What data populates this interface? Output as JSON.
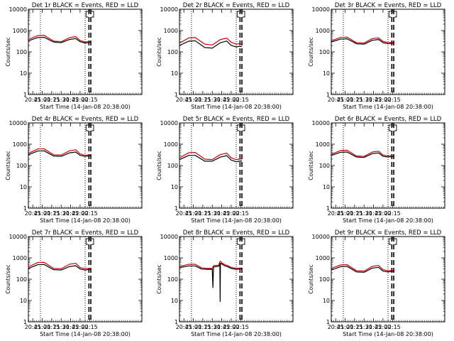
{
  "chart_data": [
    {
      "type": "line",
      "title": "Det 1r BLACK = Events, RED = LLD",
      "xlabel": "Start Time (14-Jan-08 20:38:00)",
      "ylabel": "Counts/sec",
      "yscale": "log",
      "ylim": [
        1,
        10000
      ],
      "xlim": [
        38,
        218
      ],
      "xticks": [
        45,
        60,
        75,
        90,
        105,
        120,
        135
      ],
      "xticklabels": [
        "20:45",
        "21:00",
        "21:15",
        "21:30",
        "21:45",
        "22:00",
        "22:15"
      ],
      "yticklabels": [
        "1",
        "10",
        "100",
        "1000",
        "10000"
      ],
      "series": [
        {
          "name": "Events",
          "color": "#000000",
          "x": [
            38,
            53,
            63,
            78,
            90,
            103,
            113,
            120,
            128,
            133,
            137
          ],
          "y": [
            330,
            470,
            480,
            290,
            270,
            380,
            420,
            300,
            260,
            270,
            285
          ]
        },
        {
          "name": "LLD",
          "color": "#cc0000",
          "x": [
            38,
            53,
            63,
            78,
            90,
            103,
            113,
            120,
            128,
            133,
            137
          ],
          "y": [
            380,
            580,
            600,
            320,
            300,
            460,
            520,
            340,
            290,
            300,
            310
          ]
        }
      ],
      "vlines_dotted": [
        57,
        128
      ],
      "vlines_dashed": [
        134,
        137
      ]
    },
    {
      "type": "line",
      "title": "Det 2r BLACK = Events, RED = LLD",
      "xlabel": "Start Time (14-Jan-08 20:38:00)",
      "ylabel": "Counts/sec",
      "yscale": "log",
      "ylim": [
        1,
        10000
      ],
      "xlim": [
        38,
        218
      ],
      "xticks": [
        45,
        60,
        75,
        90,
        105,
        120,
        135
      ],
      "xticklabels": [
        "20:45",
        "21:00",
        "21:15",
        "21:30",
        "21:45",
        "22:00",
        "22:15"
      ],
      "yticklabels": [
        "1",
        "10",
        "100",
        "1000",
        "10000"
      ],
      "series": [
        {
          "name": "Events",
          "color": "#000000",
          "x": [
            38,
            53,
            63,
            78,
            90,
            103,
            113,
            120,
            128,
            133,
            137
          ],
          "y": [
            200,
            320,
            330,
            160,
            150,
            270,
            320,
            200,
            170,
            180,
            175
          ]
        },
        {
          "name": "LLD",
          "color": "#cc0000",
          "x": [
            38,
            53,
            63,
            78,
            90,
            103,
            113,
            120,
            128,
            133,
            137
          ],
          "y": [
            260,
            450,
            470,
            230,
            210,
            380,
            440,
            280,
            230,
            240,
            235
          ]
        }
      ],
      "vlines_dotted": [
        57,
        128
      ],
      "vlines_dashed": [
        134,
        137
      ]
    },
    {
      "type": "line",
      "title": "Det 3r BLACK = Events, RED = LLD",
      "xlabel": "Start Time (14-Jan-08 20:38:00)",
      "ylabel": "Counts/sec",
      "yscale": "log",
      "ylim": [
        1,
        10000
      ],
      "xlim": [
        38,
        218
      ],
      "xticks": [
        45,
        60,
        75,
        90,
        105,
        120,
        135
      ],
      "xticklabels": [
        "20:45",
        "21:00",
        "21:15",
        "21:30",
        "21:45",
        "22:00",
        "22:15"
      ],
      "yticklabels": [
        "1",
        "10",
        "100",
        "1000",
        "10000"
      ],
      "series": [
        {
          "name": "Events",
          "color": "#000000",
          "x": [
            38,
            53,
            63,
            78,
            90,
            103,
            113,
            120,
            128,
            133,
            137
          ],
          "y": [
            290,
            400,
            410,
            240,
            230,
            350,
            380,
            270,
            240,
            250,
            255
          ]
        },
        {
          "name": "LLD",
          "color": "#cc0000",
          "x": [
            38,
            53,
            63,
            78,
            90,
            103,
            113,
            120,
            128,
            133,
            137
          ],
          "y": [
            330,
            480,
            490,
            270,
            260,
            420,
            450,
            310,
            270,
            280,
            285
          ]
        }
      ],
      "vlines_dotted": [
        57,
        128
      ],
      "vlines_dashed": [
        134,
        137
      ]
    },
    {
      "type": "line",
      "title": "Det 4r BLACK = Events, RED = LLD",
      "xlabel": "Start Time (14-Jan-08 20:38:00)",
      "ylabel": "Counts/sec",
      "yscale": "log",
      "ylim": [
        1,
        10000
      ],
      "xlim": [
        38,
        218
      ],
      "xticks": [
        45,
        60,
        75,
        90,
        105,
        120,
        135
      ],
      "xticklabels": [
        "20:45",
        "21:00",
        "21:15",
        "21:30",
        "21:45",
        "22:00",
        "22:15"
      ],
      "yticklabels": [
        "1",
        "10",
        "100",
        "1000",
        "10000"
      ],
      "series": [
        {
          "name": "Events",
          "color": "#000000",
          "x": [
            38,
            53,
            63,
            78,
            90,
            103,
            113,
            120,
            128,
            133,
            137
          ],
          "y": [
            320,
            480,
            490,
            280,
            270,
            390,
            430,
            300,
            270,
            280,
            290
          ]
        },
        {
          "name": "LLD",
          "color": "#cc0000",
          "x": [
            38,
            53,
            63,
            78,
            90,
            103,
            113,
            120,
            128,
            133,
            137
          ],
          "y": [
            370,
            600,
            610,
            320,
            310,
            490,
            550,
            350,
            300,
            310,
            320
          ]
        }
      ],
      "vlines_dotted": [
        57,
        128
      ],
      "vlines_dashed": [
        134,
        137
      ]
    },
    {
      "type": "line",
      "title": "Det 5r BLACK = Events, RED = LLD",
      "xlabel": "Start Time (14-Jan-08 20:38:00)",
      "ylabel": "Counts/sec",
      "yscale": "log",
      "ylim": [
        1,
        10000
      ],
      "xlim": [
        38,
        218
      ],
      "xticks": [
        45,
        60,
        75,
        90,
        105,
        120,
        135
      ],
      "xticklabels": [
        "20:45",
        "21:00",
        "21:15",
        "21:30",
        "21:45",
        "22:00",
        "22:15"
      ],
      "yticklabels": [
        "1",
        "10",
        "100",
        "1000",
        "10000"
      ],
      "series": [
        {
          "name": "Events",
          "color": "#000000",
          "x": [
            38,
            53,
            63,
            78,
            90,
            103,
            113,
            120,
            128,
            133,
            137
          ],
          "y": [
            190,
            300,
            300,
            160,
            160,
            250,
            290,
            180,
            150,
            160,
            165
          ]
        },
        {
          "name": "LLD",
          "color": "#cc0000",
          "x": [
            38,
            53,
            63,
            78,
            90,
            103,
            113,
            120,
            128,
            133,
            137
          ],
          "y": [
            230,
            400,
            410,
            200,
            190,
            330,
            380,
            230,
            190,
            200,
            205
          ]
        }
      ],
      "vlines_dotted": [
        57,
        128
      ],
      "vlines_dashed": [
        134,
        137
      ]
    },
    {
      "type": "line",
      "title": "Det 6r BLACK = Events, RED = LLD",
      "xlabel": "Start Time (14-Jan-08 20:38:00)",
      "ylabel": "Counts/sec",
      "yscale": "log",
      "ylim": [
        1,
        10000
      ],
      "xlim": [
        38,
        218
      ],
      "xticks": [
        45,
        60,
        75,
        90,
        105,
        120,
        135
      ],
      "xticklabels": [
        "20:45",
        "21:00",
        "21:15",
        "21:30",
        "21:45",
        "22:00",
        "22:15"
      ],
      "yticklabels": [
        "1",
        "10",
        "100",
        "1000",
        "10000"
      ],
      "series": [
        {
          "name": "Events",
          "color": "#000000",
          "x": [
            38,
            53,
            63,
            78,
            90,
            103,
            113,
            120,
            128,
            133,
            137
          ],
          "y": [
            300,
            420,
            430,
            250,
            240,
            360,
            390,
            270,
            250,
            260,
            265
          ]
        },
        {
          "name": "LLD",
          "color": "#cc0000",
          "x": [
            38,
            53,
            63,
            78,
            90,
            103,
            113,
            120,
            128,
            133,
            137
          ],
          "y": [
            340,
            510,
            520,
            280,
            270,
            430,
            470,
            310,
            280,
            290,
            295
          ]
        }
      ],
      "vlines_dotted": [
        57,
        128
      ],
      "vlines_dashed": [
        134,
        137
      ]
    },
    {
      "type": "line",
      "title": "Det 7r BLACK = Events, RED = LLD",
      "xlabel": "Start Time (14-Jan-08 20:38:00)",
      "ylabel": "Counts/sec",
      "yscale": "log",
      "ylim": [
        1,
        10000
      ],
      "xlim": [
        38,
        218
      ],
      "xticks": [
        45,
        60,
        75,
        90,
        105,
        120,
        135
      ],
      "xticklabels": [
        "20:45",
        "21:00",
        "21:15",
        "21:30",
        "21:45",
        "22:00",
        "22:15"
      ],
      "yticklabels": [
        "1",
        "10",
        "100",
        "1000",
        "10000"
      ],
      "series": [
        {
          "name": "Events",
          "color": "#000000",
          "x": [
            38,
            53,
            63,
            78,
            90,
            103,
            113,
            120,
            128,
            133,
            137
          ],
          "y": [
            320,
            480,
            490,
            280,
            270,
            390,
            430,
            300,
            270,
            280,
            290
          ]
        },
        {
          "name": "LLD",
          "color": "#cc0000",
          "x": [
            38,
            53,
            63,
            78,
            90,
            103,
            113,
            120,
            128,
            133,
            137
          ],
          "y": [
            380,
            610,
            620,
            320,
            310,
            500,
            560,
            350,
            310,
            320,
            330
          ]
        }
      ],
      "vlines_dotted": [
        57,
        128
      ],
      "vlines_dashed": [
        134,
        137
      ]
    },
    {
      "type": "line",
      "title": "Det 8r BLACK = Events, RED = LLD",
      "xlabel": "Start Time (14-Jan-08 20:38:00)",
      "ylabel": "Counts/sec",
      "yscale": "log",
      "ylim": [
        1,
        10000
      ],
      "xlim": [
        38,
        218
      ],
      "xticks": [
        45,
        60,
        75,
        90,
        105,
        120,
        135
      ],
      "xticklabels": [
        "20:45",
        "21:00",
        "21:15",
        "21:30",
        "21:45",
        "22:00",
        "22:15"
      ],
      "yticklabels": [
        "1",
        "10",
        "100",
        "1000",
        "10000"
      ],
      "series": [
        {
          "name": "Events",
          "color": "#000000",
          "x": [
            38,
            53,
            63,
            73,
            83,
            90,
            91,
            92,
            100,
            102,
            102.5,
            103,
            106,
            110,
            113,
            120,
            128,
            133,
            137
          ],
          "y": [
            350,
            420,
            420,
            300,
            290,
            290,
            40,
            380,
            400,
            550,
            9,
            560,
            500,
            420,
            400,
            320,
            290,
            300,
            310
          ]
        },
        {
          "name": "LLD",
          "color": "#cc0000",
          "x": [
            38,
            53,
            63,
            73,
            83,
            90,
            92,
            100,
            102,
            103,
            106,
            110,
            113,
            120,
            128,
            133,
            137
          ],
          "y": [
            400,
            500,
            500,
            340,
            320,
            320,
            430,
            450,
            650,
            700,
            560,
            480,
            450,
            360,
            320,
            330,
            340
          ]
        }
      ],
      "vlines_dotted": [
        57,
        128
      ],
      "vlines_dashed": [
        134,
        137
      ]
    },
    {
      "type": "line",
      "title": "Det 9r BLACK = Events, RED = LLD",
      "xlabel": "Start Time (14-Jan-08 20:38:00)",
      "ylabel": "Counts/sec",
      "yscale": "log",
      "ylim": [
        1,
        10000
      ],
      "xlim": [
        38,
        218
      ],
      "xticks": [
        45,
        60,
        75,
        90,
        105,
        120,
        135
      ],
      "xticklabels": [
        "20:45",
        "21:00",
        "21:15",
        "21:30",
        "21:45",
        "22:00",
        "22:15"
      ],
      "yticklabels": [
        "1",
        "10",
        "100",
        "1000",
        "10000"
      ],
      "series": [
        {
          "name": "Events",
          "color": "#000000",
          "x": [
            38,
            53,
            63,
            78,
            90,
            103,
            113,
            120,
            128,
            133,
            137
          ],
          "y": [
            270,
            390,
            400,
            220,
            210,
            330,
            360,
            240,
            220,
            230,
            235
          ]
        },
        {
          "name": "LLD",
          "color": "#cc0000",
          "x": [
            38,
            53,
            63,
            78,
            90,
            103,
            113,
            120,
            128,
            133,
            137
          ],
          "y": [
            320,
            470,
            480,
            250,
            240,
            400,
            440,
            280,
            250,
            260,
            265
          ]
        }
      ],
      "vlines_dotted": [
        57,
        128
      ],
      "vlines_dashed": [
        134,
        137
      ]
    }
  ]
}
